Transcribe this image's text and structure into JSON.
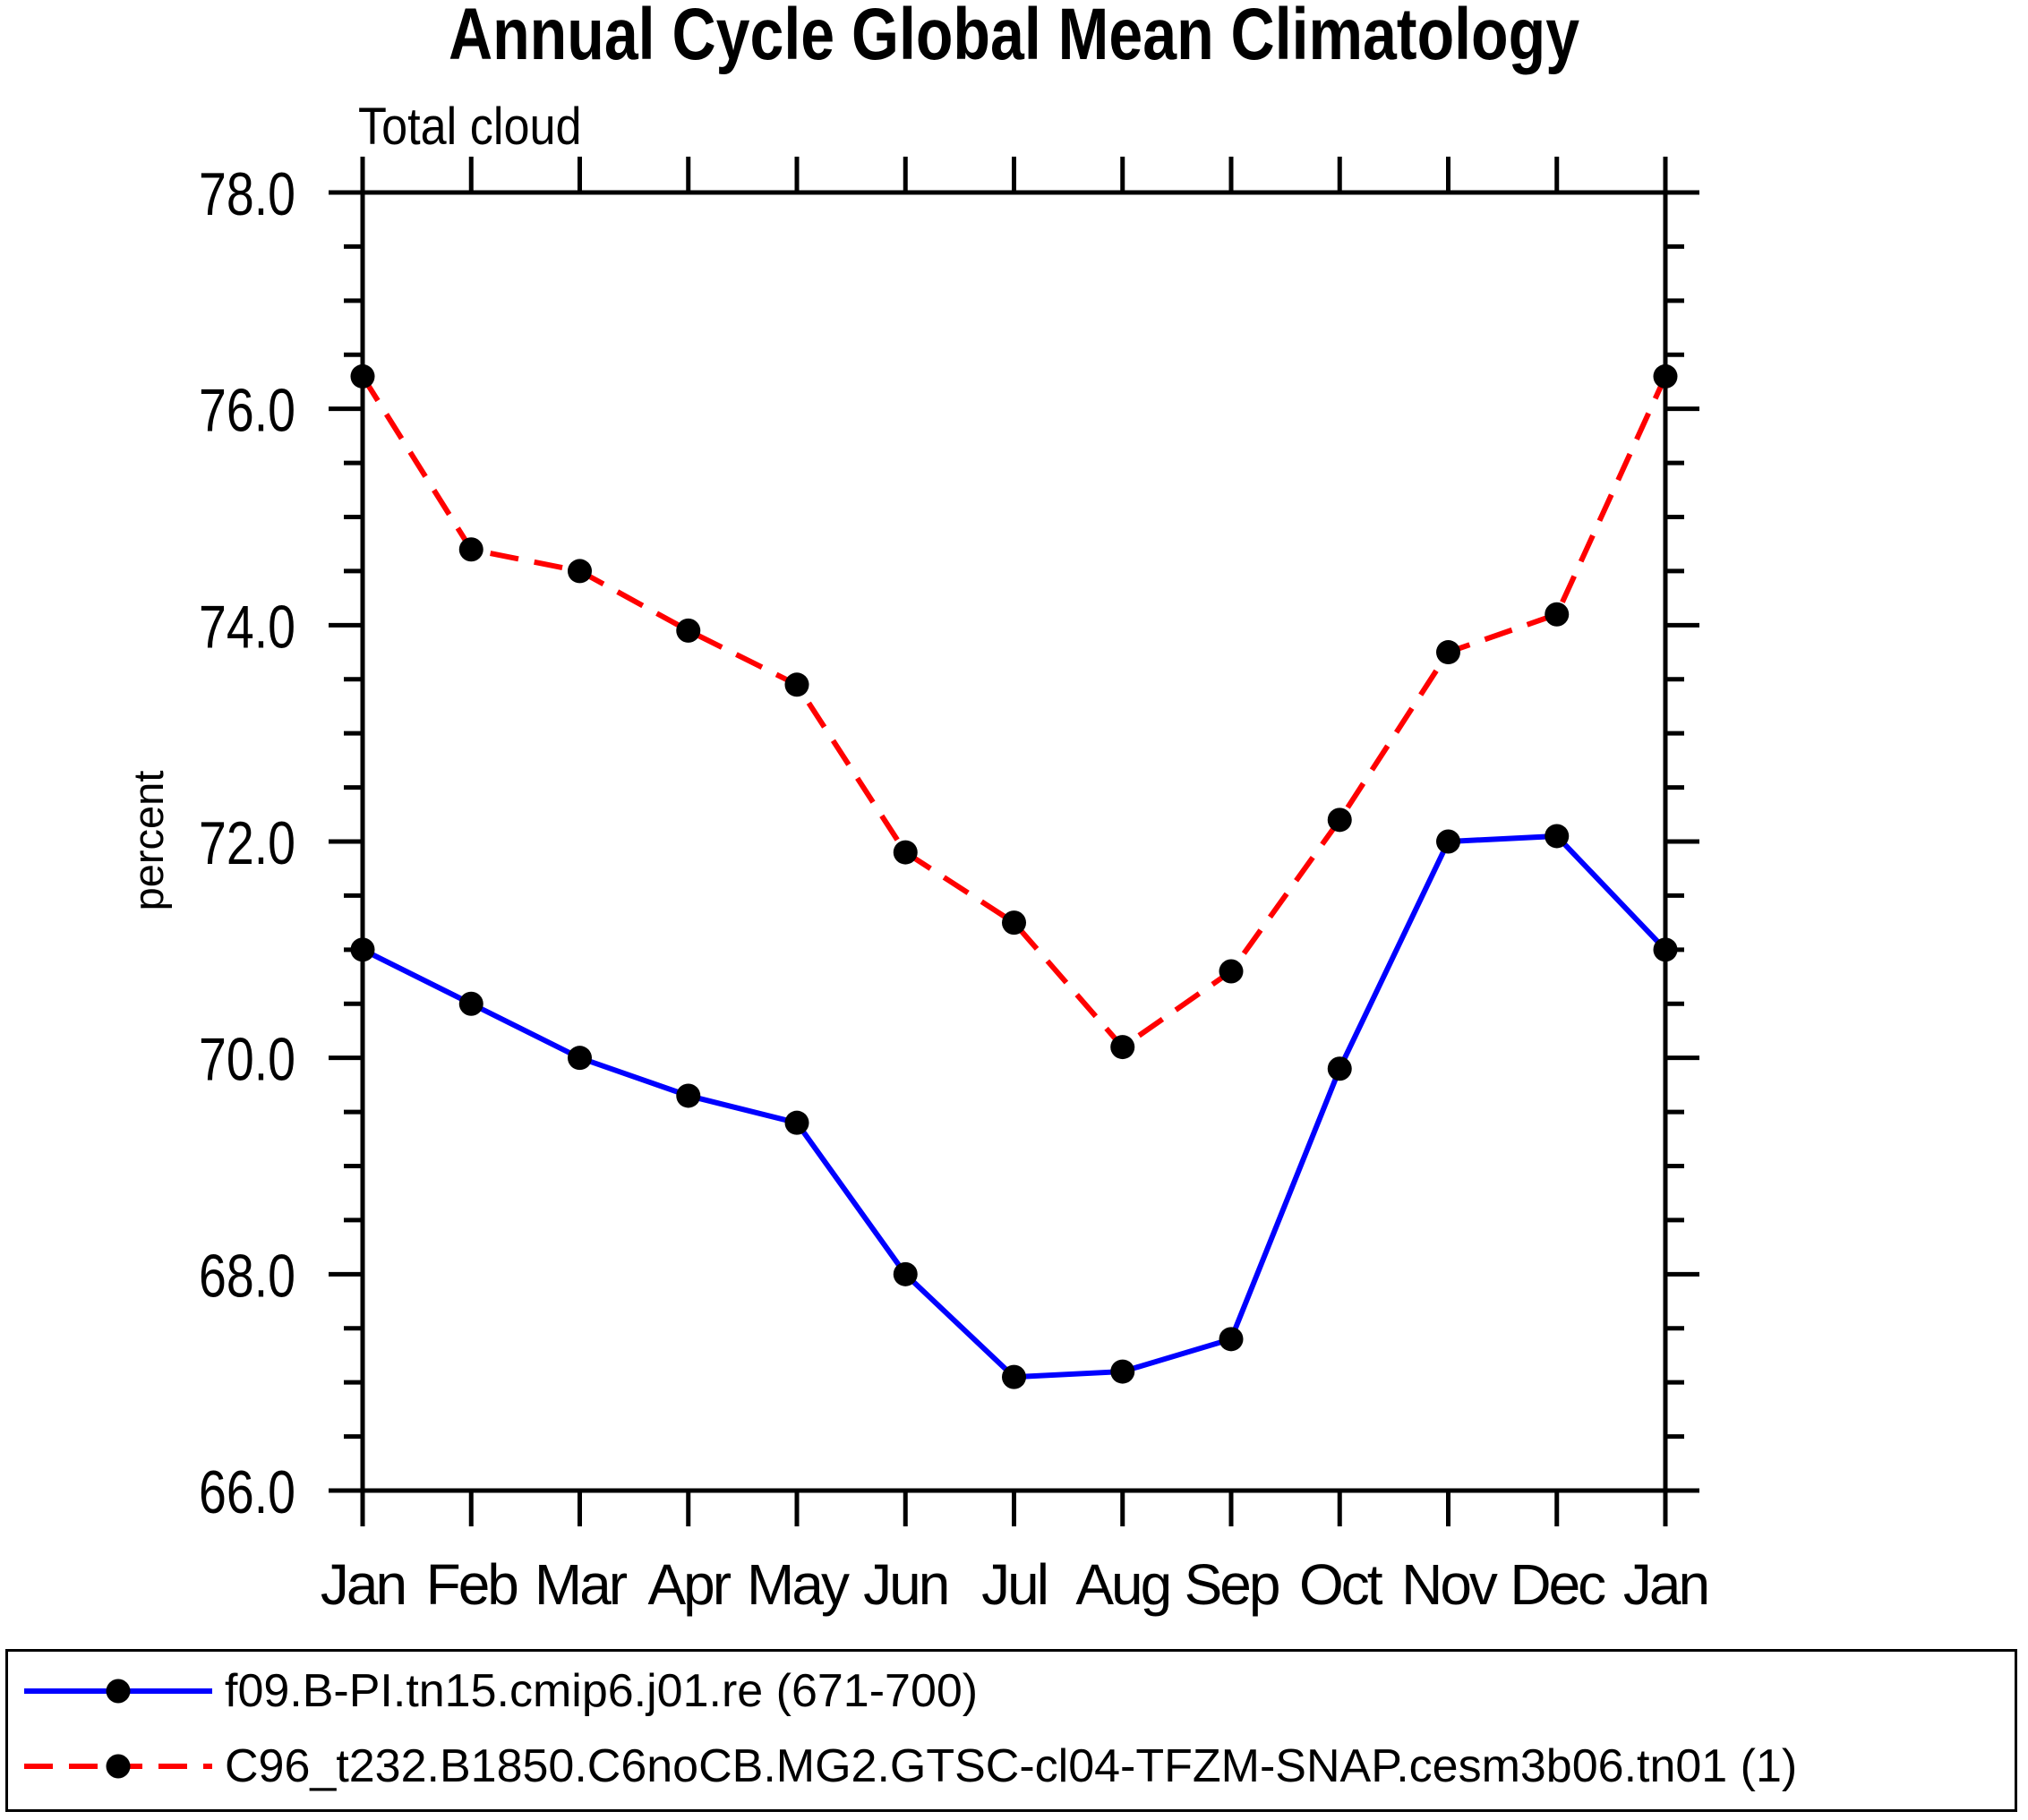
{
  "title": "Annual Cycle Global Mean Climatology",
  "subtitle": "Total cloud",
  "ylabel": "percent",
  "colors": {
    "axis": "#000000",
    "marker": "#000000",
    "series1": "#0000ff",
    "series2": "#ff0000"
  },
  "legend": {
    "entries": [
      {
        "label": "f09.B-PI.tn15.cmip6.j01.re (671-700)",
        "line_style": "solid",
        "color": "#0000ff",
        "marker": "filled-circle"
      },
      {
        "label": "C96_t232.B1850.C6noCB.MG2.GTSC-cl04-TFZM-SNAP.cesm3b06.tn01 (1)",
        "line_style": "dashed",
        "color": "#ff0000",
        "marker": "filled-circle"
      }
    ]
  },
  "chart_data": {
    "type": "line",
    "title": "Annual Cycle Global Mean Climatology",
    "subtitle": "Total cloud",
    "xlabel": "",
    "ylabel": "percent",
    "categories": [
      "Jan",
      "Feb",
      "Mar",
      "Apr",
      "May",
      "Jun",
      "Jul",
      "Aug",
      "Sep",
      "Oct",
      "Nov",
      "Dec",
      "Jan"
    ],
    "ylim": [
      66.0,
      78.0
    ],
    "ytick_major_interval": 2.0,
    "ytick_minor_interval": 0.5,
    "ytick_labels": [
      "66.0",
      "68.0",
      "70.0",
      "72.0",
      "74.0",
      "76.0",
      "78.0"
    ],
    "grid": false,
    "legend_position": "bottom",
    "series": [
      {
        "name": "f09.B-PI.tn15.cmip6.j01.re (671-700)",
        "color": "#0000ff",
        "style": "solid",
        "marker": "circle",
        "marker_color": "#000000",
        "values": [
          71.0,
          70.5,
          70.0,
          69.65,
          69.4,
          68.0,
          67.05,
          67.1,
          67.4,
          69.9,
          72.0,
          72.05,
          71.0
        ]
      },
      {
        "name": "C96_t232.B1850.C6noCB.MG2.GTSC-cl04-TFZM-SNAP.cesm3b06.tn01 (1)",
        "color": "#ff0000",
        "style": "dashed",
        "marker": "circle",
        "marker_color": "#000000",
        "values": [
          76.3,
          74.7,
          74.5,
          73.95,
          73.45,
          71.9,
          71.25,
          70.1,
          70.8,
          72.2,
          73.75,
          74.1,
          76.3
        ]
      }
    ]
  }
}
